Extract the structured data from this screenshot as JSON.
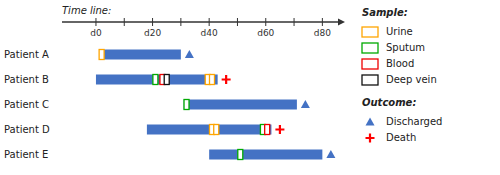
{
  "chart_data": {
    "type": "timeline",
    "orientation": "horizontal",
    "x_label": "Time line:",
    "xlim": [
      -12,
      88
    ],
    "xticks": [
      {
        "value": 0,
        "label": "d0"
      },
      {
        "value": 10,
        "label": null
      },
      {
        "value": 20,
        "label": "d20"
      },
      {
        "value": 30,
        "label": null
      },
      {
        "value": 40,
        "label": "d40"
      },
      {
        "value": 50,
        "label": null
      },
      {
        "value": 60,
        "label": "d60"
      },
      {
        "value": 70,
        "label": null
      },
      {
        "value": 80,
        "label": "d80"
      }
    ],
    "categories": [
      "Patient A",
      "Patient B",
      "Patient C",
      "Patient D",
      "Patient E"
    ],
    "bars": {
      "color": "#4472C4",
      "start": [
        2,
        0,
        31,
        18,
        40
      ],
      "end": [
        30,
        43,
        71,
        62,
        80
      ]
    },
    "sample_legend_title": "Sample:",
    "sample_series": [
      {
        "name": "Urine",
        "color": "#FFA500",
        "marker": "square",
        "categories": [
          "Patient A",
          "Patient B",
          "Patient B",
          "Patient D",
          "Patient D"
        ],
        "x": [
          2,
          39.5,
          41,
          41,
          42.5
        ]
      },
      {
        "name": "Sputum",
        "color": "#00AA00",
        "marker": "square",
        "categories": [
          "Patient B",
          "Patient C",
          "Patient D",
          "Patient E"
        ],
        "x": [
          21,
          32,
          59,
          51
        ]
      },
      {
        "name": "Blood",
        "color": "#EE0000",
        "marker": "square",
        "categories": [
          "Patient B",
          "Patient D"
        ],
        "x": [
          23.5,
          60.5
        ]
      },
      {
        "name": "Deep vein",
        "color": "#111111",
        "marker": "square",
        "categories": [
          "Patient B"
        ],
        "x": [
          25
        ]
      }
    ],
    "outcome_legend_title": "Outcome:",
    "outcome_series": [
      {
        "name": "Discharged",
        "color": "#4472C4",
        "marker": "triangle",
        "categories": [
          "Patient A",
          "Patient C",
          "Patient E"
        ],
        "x": [
          33,
          74,
          83
        ]
      },
      {
        "name": "Death",
        "color": "red",
        "marker": "plus",
        "categories": [
          "Patient B",
          "Patient D"
        ],
        "x": [
          46,
          65
        ]
      }
    ]
  }
}
